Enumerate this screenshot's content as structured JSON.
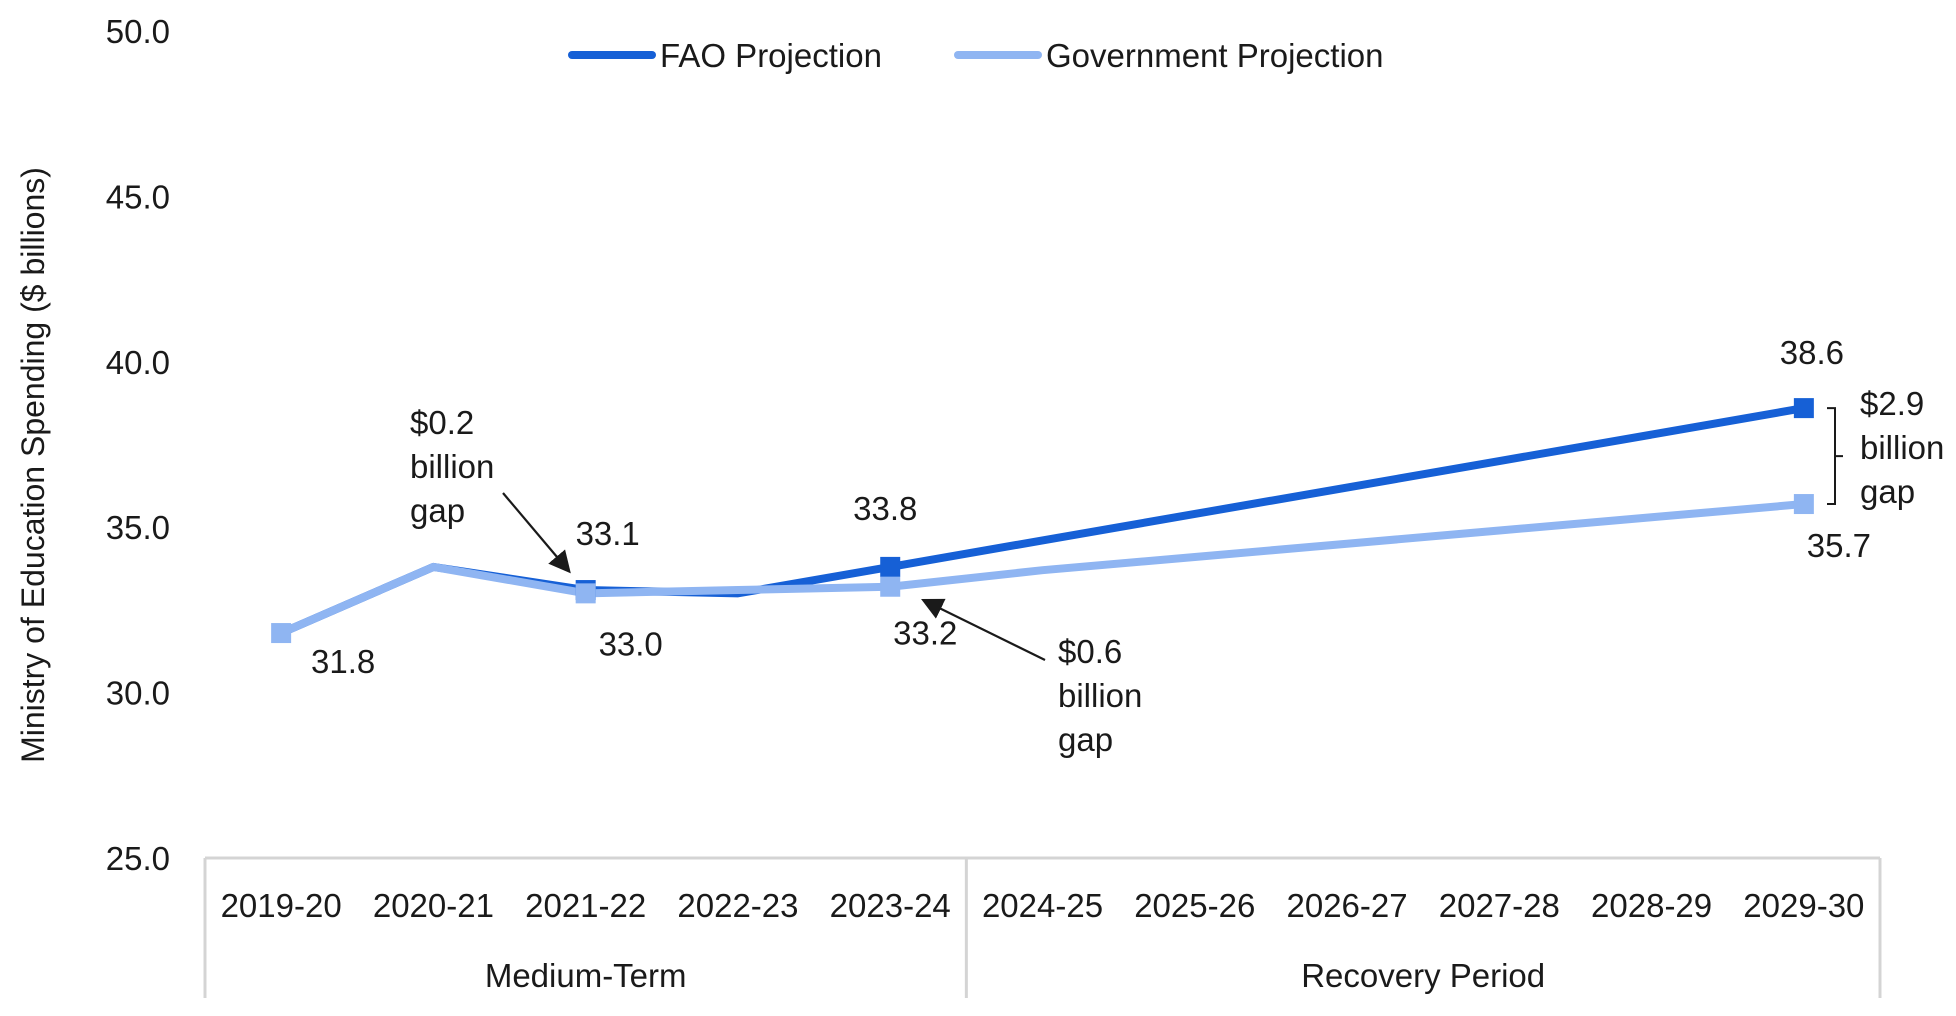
{
  "chart_data": {
    "type": "line",
    "ylabel": "Ministry of Education Spending ($ billions)",
    "ylim": [
      25.0,
      50.0
    ],
    "yticks": [
      "25.0",
      "30.0",
      "35.0",
      "40.0",
      "45.0",
      "50.0"
    ],
    "categories": [
      "2019-20",
      "2020-21",
      "2021-22",
      "2022-23",
      "2023-24",
      "2024-25",
      "2025-26",
      "2026-27",
      "2027-28",
      "2028-29",
      "2029-30"
    ],
    "groups": [
      {
        "label": "Medium-Term",
        "categories": [
          "2019-20",
          "2020-21",
          "2021-22",
          "2022-23",
          "2023-24"
        ]
      },
      {
        "label": "Recovery Period",
        "categories": [
          "2024-25",
          "2025-26",
          "2026-27",
          "2027-28",
          "2028-29",
          "2029-30"
        ]
      }
    ],
    "grid": false,
    "legend_position": "top-center",
    "series": [
      {
        "name": "FAO Projection",
        "color": "#1660d6",
        "values": [
          31.8,
          33.8,
          33.1,
          33.0,
          33.8,
          34.6,
          35.4,
          36.2,
          37.0,
          37.8,
          38.6
        ],
        "markers": [
          "2021-22",
          "2023-24",
          "2029-30"
        ]
      },
      {
        "name": "Government Projection",
        "color": "#8fb5f2",
        "values": [
          31.8,
          33.8,
          33.0,
          33.1,
          33.2,
          33.7,
          34.1,
          34.5,
          34.9,
          35.3,
          35.7
        ],
        "markers": [
          "2019-20",
          "2021-22",
          "2023-24",
          "2029-30"
        ]
      }
    ],
    "data_labels": [
      {
        "category": "2019-20",
        "series": "Government Projection",
        "text": "31.8"
      },
      {
        "category": "2021-22",
        "series": "FAO Projection",
        "text": "33.1"
      },
      {
        "category": "2021-22",
        "series": "Government Projection",
        "text": "33.0"
      },
      {
        "category": "2023-24",
        "series": "FAO Projection",
        "text": "33.8"
      },
      {
        "category": "2023-24",
        "series": "Government Projection",
        "text": "33.2"
      },
      {
        "category": "2029-30",
        "series": "FAO Projection",
        "text": "38.6"
      },
      {
        "category": "2029-30",
        "series": "Government Projection",
        "text": "35.7"
      }
    ],
    "annotations": [
      {
        "lines": [
          "$0.2",
          "billion",
          "gap"
        ],
        "category": "2021-22"
      },
      {
        "lines": [
          "$0.6",
          "billion",
          "gap"
        ],
        "category": "2023-24"
      },
      {
        "lines": [
          "$2.9",
          "billion",
          "gap"
        ],
        "category": "2029-30"
      }
    ]
  }
}
